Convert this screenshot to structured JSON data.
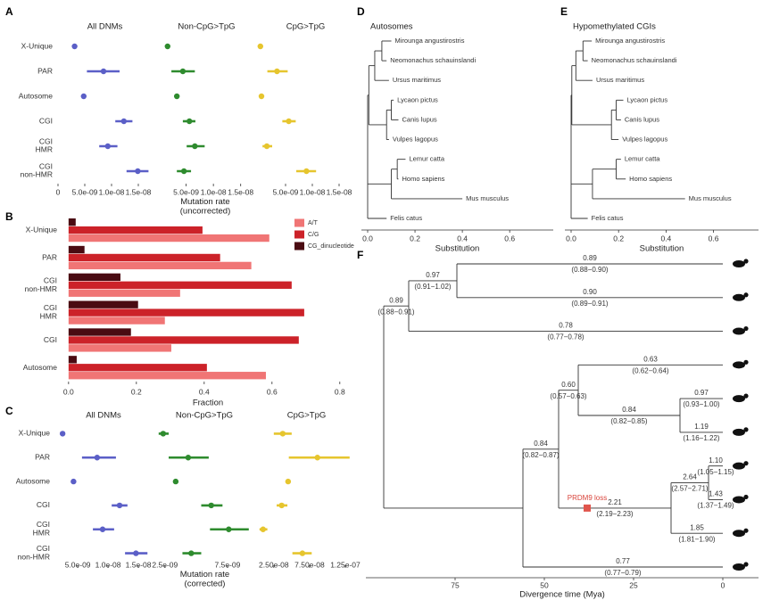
{
  "chart_data": [
    {
      "type": "dot_errorbar",
      "panel": "A",
      "categories": [
        "X-Unique",
        "PAR",
        "Autosome",
        "CGI",
        "CGI\nHMR",
        "CGI\nnon-HMR"
      ],
      "xlim": [
        0,
        1.75e-08
      ],
      "xlabel": "Mutation rate\n(uncorrected)",
      "facets": [
        {
          "title": "All DNMs",
          "color": "#5b5fc7",
          "values": [
            3.1e-09,
            8.5e-09,
            4.8e-09,
            1.23e-08,
            9.3e-09,
            1.49e-08
          ],
          "lower": [
            2.8e-09,
            5.4e-09,
            4.6e-09,
            1.07e-08,
            7.7e-09,
            1.28e-08
          ],
          "upper": [
            3.4e-09,
            1.15e-08,
            5e-09,
            1.39e-08,
            1.11e-08,
            1.69e-08
          ],
          "xticks": [
            0,
            {
              "value": 5e-09,
              "label": "5.0e-09"
            },
            {
              "value": 1e-08,
              "label": "1.0e-08"
            },
            {
              "value": 1.5e-08,
              "label": "1.5e-08"
            }
          ]
        },
        {
          "title": "Non-CpG>TpG",
          "color": "#2e8b2e",
          "values": [
            1.6e-09,
            4.4e-09,
            3.3e-09,
            5.6e-09,
            6.6e-09,
            4.6e-09
          ],
          "lower": [
            1.4e-09,
            2.3e-09,
            3.1e-09,
            4.4e-09,
            5.1e-09,
            3.3e-09
          ],
          "upper": [
            1.8e-09,
            6.6e-09,
            3.5e-09,
            6.7e-09,
            8.4e-09,
            5.9e-09
          ],
          "xticks": [
            {
              "value": 5e-09,
              "label": "5.0e-09"
            },
            {
              "value": 1e-08,
              "label": "1.0e-08"
            },
            {
              "value": 1.5e-08,
              "label": "1.5e-08"
            }
          ]
        },
        {
          "title": "CpG>TpG",
          "color": "#e6c52e",
          "values": [
            3e-10,
            3.4e-09,
            5e-10,
            5.6e-09,
            1.5e-09,
            8.9e-09
          ],
          "lower": [
            2e-10,
            1.6e-09,
            4e-10,
            4.4e-09,
            7e-10,
            7e-09
          ],
          "upper": [
            4e-10,
            5.4e-09,
            6e-10,
            6.9e-09,
            2.5e-09,
            1.07e-08
          ],
          "xticks": [
            {
              "value": 5e-09,
              "label": "5.0e-09"
            },
            {
              "value": 1e-08,
              "label": "1.0e-08"
            },
            {
              "value": 1.5e-08,
              "label": "1.5e-08"
            }
          ]
        }
      ]
    },
    {
      "type": "bar",
      "panel": "B",
      "orientation": "horizontal",
      "categories": [
        "X-Unique",
        "PAR",
        "CGI\nnon-HMR",
        "CGI\nHMR",
        "CGI",
        "Autosome"
      ],
      "series": [
        {
          "name": "A/T",
          "color": "#f07575",
          "values": [
            0.592,
            0.539,
            0.329,
            0.284,
            0.303,
            0.582
          ]
        },
        {
          "name": "C/G",
          "color": "#cc2229",
          "values": [
            0.395,
            0.447,
            0.658,
            0.695,
            0.679,
            0.408
          ]
        },
        {
          "name": "CG_dinucleotide",
          "color": "#4a0b12",
          "values": [
            0.021,
            0.047,
            0.153,
            0.205,
            0.184,
            0.024
          ]
        }
      ],
      "xlim": [
        -0.018,
        0.84
      ],
      "xticks": [
        {
          "value": 0,
          "label": "0.0"
        },
        0.2,
        0.4,
        0.6,
        0.8
      ],
      "xlabel": "Fraction",
      "legend": "top-right"
    },
    {
      "type": "dot_errorbar",
      "panel": "C",
      "categories": [
        "X-Unique",
        "PAR",
        "Autosome",
        "CGI",
        "CGI\nHMR",
        "CGI\nnon-HMR"
      ],
      "xlabel": "Mutation rate\n(corrected)",
      "facets": [
        {
          "title": "All DNMs",
          "color": "#5b5fc7",
          "xlim": [
            1.3e-09,
            1.72e-08
          ],
          "values": [
            2.5e-09,
            8.2e-09,
            4.3e-09,
            1.19e-08,
            9.1e-09,
            1.46e-08
          ],
          "lower": [
            2.1e-09,
            5.7e-09,
            4.1e-09,
            1.06e-08,
            7.5e-09,
            1.28e-08
          ],
          "upper": [
            2.9e-09,
            1.13e-08,
            4.5e-09,
            1.32e-08,
            1.1e-08,
            1.65e-08
          ],
          "xticks": [
            {
              "value": 5e-09,
              "label": "5.0e-09"
            },
            {
              "value": 1e-08,
              "label": "1.0e-08"
            },
            {
              "value": 1.5e-08,
              "label": "1.5e-08"
            }
          ]
        },
        {
          "title": "Non-CpG>TpG",
          "color": "#2e8b2e",
          "xlim": [
            1.8e-09,
            9.5e-09
          ],
          "values": [
            2.36e-09,
            4.36e-09,
            3.36e-09,
            6.2e-09,
            7.6e-09,
            4.6e-09
          ],
          "lower": [
            2e-09,
            2.8e-09,
            3.2e-09,
            5.4e-09,
            6.1e-09,
            3.9e-09
          ],
          "upper": [
            2.8e-09,
            6e-09,
            3.5e-09,
            7.1e-09,
            9.2e-09,
            5.4e-09
          ],
          "xticks": [
            {
              "value": 2.5e-09,
              "label": "2.5e-09"
            },
            {
              "value": 7.5e-09,
              "label": "7.5e-09"
            }
          ]
        },
        {
          "title": "CpG>TpG",
          "color": "#e6c52e",
          "xlim": [
            4e-09,
            1.375e-07
          ],
          "values": [
            3.75e-08,
            8.6e-08,
            4.5e-08,
            3.6e-08,
            1e-08,
            6.5e-08
          ],
          "lower": [
            2.5e-08,
            4.6e-08,
            4.3e-08,
            2.9e-08,
            5e-09,
            5.1e-08
          ],
          "upper": [
            5e-08,
            1.31e-07,
            4.7e-08,
            4.4e-08,
            1.6e-08,
            7.8e-08
          ],
          "xticks": [
            {
              "value": 2.5e-08,
              "label": "2.50e-08"
            },
            {
              "value": 7.5e-08,
              "label": "7.50e-08"
            },
            {
              "value": 1.25e-07,
              "label": "1.25e-07"
            }
          ]
        }
      ]
    },
    {
      "type": "tree",
      "panel": "D",
      "title": "Autosomes",
      "xlim": [
        0,
        0.72
      ],
      "xticks": [
        {
          "value": 0,
          "label": "0.0"
        },
        0.2,
        0.4,
        0.6
      ],
      "xlabel": "Substitution",
      "tree": {
        "x": 0,
        "children": [
          {
            "x": 0.005,
            "children": [
              {
                "x": 0.03,
                "children": [
                  {
                    "x": 0.06,
                    "children": [
                      {
                        "label": "Mirounga angustirostris",
                        "x": 0.1
                      },
                      {
                        "label": "Neomonachus schauinslandi",
                        "x": 0.08
                      }
                    ]
                  },
                  {
                    "label": "Ursus maritimus",
                    "x": 0.09
                  }
                ]
              },
              {
                "x": 0.08,
                "children": [
                  {
                    "x": 0.1,
                    "children": [
                      {
                        "label": "Lycaon pictus",
                        "x": 0.11
                      },
                      {
                        "label": "Canis lupus",
                        "x": 0.13
                      }
                    ]
                  },
                  {
                    "label": "Vulpes lagopus",
                    "x": 0.09
                  }
                ]
              }
            ]
          },
          {
            "x": 0.1,
            "children": [
              {
                "x": 0.125,
                "children": [
                  {
                    "label": "Lemur catta",
                    "x": 0.16
                  },
                  {
                    "label": "Homo sapiens",
                    "x": 0.13
                  }
                ]
              },
              {
                "label": "Mus musculus",
                "x": 0.4
              }
            ]
          },
          {
            "label": "Felis catus",
            "x": 0.08
          }
        ]
      }
    },
    {
      "type": "tree",
      "panel": "E",
      "title": "Hypomethylated CGIs",
      "xlim": [
        0,
        0.72
      ],
      "xticks": [
        {
          "value": 0,
          "label": "0.0"
        },
        0.2,
        0.4,
        0.6
      ],
      "xlabel": "Substitution",
      "tree": {
        "x": 0,
        "children": [
          {
            "x": 0.003,
            "children": [
              {
                "x": 0.02,
                "children": [
                  {
                    "x": 0.05,
                    "children": [
                      {
                        "label": "Mirounga angustirostris",
                        "x": 0.087
                      },
                      {
                        "label": "Neomonachus schauinslandi",
                        "x": 0.07
                      }
                    ]
                  },
                  {
                    "label": "Ursus maritimus",
                    "x": 0.09
                  }
                ]
              },
              {
                "x": 0.17,
                "children": [
                  {
                    "x": 0.19,
                    "children": [
                      {
                        "label": "Lycaon pictus",
                        "x": 0.22
                      },
                      {
                        "label": "Canis lupus",
                        "x": 0.21
                      }
                    ]
                  },
                  {
                    "label": "Vulpes lagopus",
                    "x": 0.2
                  }
                ]
              }
            ]
          },
          {
            "x": 0.09,
            "children": [
              {
                "x": 0.19,
                "children": [
                  {
                    "label": "Lemur catta",
                    "x": 0.21
                  },
                  {
                    "label": "Homo sapiens",
                    "x": 0.23
                  }
                ]
              },
              {
                "label": "Mus musculus",
                "x": 0.48
              }
            ]
          },
          {
            "label": "Felis catus",
            "x": 0.07
          }
        ]
      }
    },
    {
      "type": "time_tree",
      "panel": "F",
      "xlim": [
        97,
        0
      ],
      "xticks": [
        75,
        50,
        25,
        0
      ],
      "xlabel": "Divergence time (Mya)",
      "annotation": {
        "text": "PRDM9 loss",
        "age": 38
      },
      "tree": {
        "age": 95,
        "children": [
          {
            "age": 88,
            "rate": "0.89",
            "ci": "(0.88−0.91)",
            "children": [
              {
                "age": 74.5,
                "rate": "0.97",
                "ci": "(0.91−1.02)",
                "children": [
                  {
                    "age": 0,
                    "rate": "0.89",
                    "ci": "(0.88−0.90)"
                  },
                  {
                    "age": 0,
                    "rate": "0.90",
                    "ci": "(0.89−0.91)"
                  }
                ]
              },
              {
                "age": 0,
                "rate": "0.78",
                "ci": "(0.77−0.78)"
              }
            ]
          },
          {
            "age": 56,
            "children": [
              {
                "age": 46,
                "rate": "0.84",
                "ci": "(0.82−0.87)",
                "children": [
                  {
                    "age": 40.5,
                    "rate": "0.60",
                    "ci": "(0.57−0.63)",
                    "children": [
                      {
                        "age": 0,
                        "rate": "0.63",
                        "ci": "(0.62−0.64)"
                      },
                      {
                        "age": 12,
                        "rate": "0.84",
                        "ci": "(0.82−0.85)",
                        "children": [
                          {
                            "age": 0,
                            "rate": "0.97",
                            "ci": "(0.93−1.00)"
                          },
                          {
                            "age": 0,
                            "rate": "1.19",
                            "ci": "(1.16−1.22)"
                          }
                        ]
                      }
                    ]
                  },
                  {
                    "age": 14.5,
                    "rate": "2.21",
                    "ci": "(2.19−2.23)",
                    "children": [
                      {
                        "age": 4,
                        "rate": "2.64",
                        "ci": "(2.57−2.71)",
                        "children": [
                          {
                            "age": 0,
                            "rate": "1.10",
                            "ci": "(1.05−1.15)"
                          },
                          {
                            "age": 0,
                            "rate": "1.43",
                            "ci": "(1.37−1.49)"
                          }
                        ]
                      },
                      {
                        "age": 0,
                        "rate": "1.85",
                        "ci": "(1.81−1.90)"
                      }
                    ]
                  }
                ]
              },
              {
                "age": 0,
                "rate": "0.77",
                "ci": "(0.77−0.79)"
              }
            ]
          }
        ]
      }
    }
  ]
}
